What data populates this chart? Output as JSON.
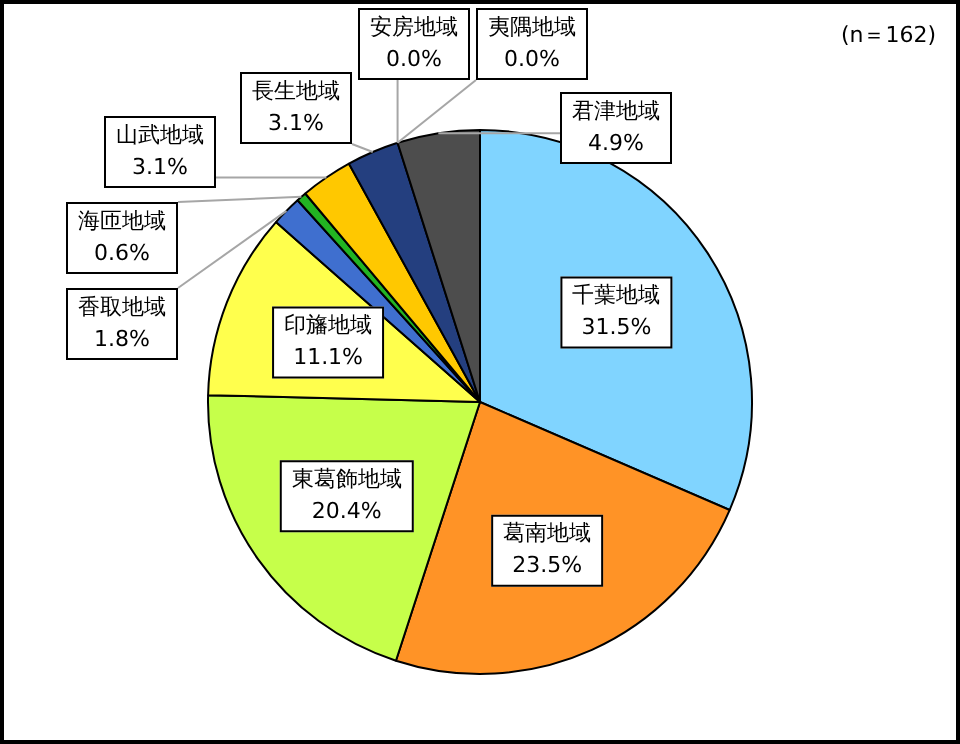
{
  "chart_data": {
    "type": "pie",
    "categories": [
      "千葉地域",
      "葛南地域",
      "東葛飾地域",
      "印旛地域",
      "香取地域",
      "海匝地域",
      "山武地域",
      "長生地域",
      "安房地域",
      "夷隅地域",
      "君津地域"
    ],
    "values": [
      31.5,
      23.5,
      20.4,
      11.1,
      1.8,
      0.6,
      3.1,
      3.1,
      0.0,
      0.0,
      4.9
    ],
    "value_labels": [
      "31.5%",
      "23.5%",
      "20.4%",
      "11.1%",
      "1.8%",
      "0.6%",
      "3.1%",
      "3.1%",
      "0.0%",
      "0.0%",
      "4.9%"
    ],
    "colors": [
      "#80d4ff",
      "#ff9326",
      "#c6ff4a",
      "#ffff4d",
      "#3f6fcf",
      "#22b422",
      "#ffc800",
      "#243f7f",
      "#9999ff",
      "#993366",
      "#4d4d4d"
    ],
    "annotations": [
      "(n＝162)"
    ],
    "legend": false
  }
}
